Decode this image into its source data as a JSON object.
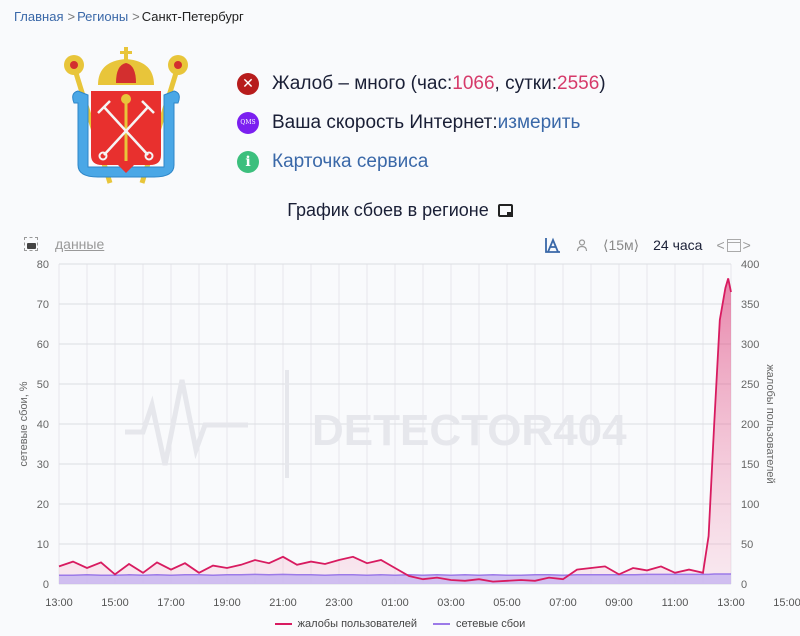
{
  "breadcrumb": {
    "items": [
      "Главная",
      "Регионы"
    ],
    "current": "Санкт-Петербург",
    "separator": ">"
  },
  "emblem": {
    "alt": "Герб Санкт-Петербурга"
  },
  "info": {
    "complaints": {
      "icon": "error-x-icon",
      "prefix": "Жалоб – много (час: ",
      "hour_value": "1066",
      "mid": ", сутки: ",
      "day_value": "2556",
      "suffix": ")"
    },
    "speed": {
      "icon": "qms-icon",
      "icon_text": "QMS",
      "label": "Ваша скорость Интернет: ",
      "link": "измерить"
    },
    "service": {
      "icon": "info-icon",
      "icon_text": "i",
      "link": "Карточка сервиса"
    }
  },
  "chart_header": {
    "title": "График сбоев в регионе",
    "title_icon": "monitor-icon"
  },
  "toolbar": {
    "camera_icon": "camera-icon",
    "data_link": "данные",
    "chart_mode_icon": "chart-mode-icon",
    "user_icon": "user-icon",
    "interval": "⟨15м⟩",
    "period": "24 часа",
    "prev": "<",
    "next": ">",
    "calendar_icon": "calendar-icon"
  },
  "colors": {
    "complaints": "#d81b60",
    "complaints_fill": "#f8bbd0",
    "outages": "#9c7ae8",
    "outages_fill": "#c9b6f0",
    "link": "#3a68a8",
    "number": "#d63a6a"
  },
  "chart_data": {
    "type": "line",
    "title": "График сбоев в регионе",
    "xlabel": "",
    "ylabel": "сетевые сбои, %",
    "y2label": "жалобы пользователей",
    "ylim": [
      0,
      80
    ],
    "y2lim": [
      0,
      400
    ],
    "yticks": [
      0,
      10,
      20,
      30,
      40,
      50,
      60,
      70,
      80
    ],
    "y2ticks": [
      0,
      50,
      100,
      150,
      200,
      250,
      300,
      350,
      400
    ],
    "xticks": [
      "13:00",
      "15:00",
      "17:00",
      "19:00",
      "21:00",
      "23:00",
      "01:00",
      "03:00",
      "05:00",
      "07:00",
      "09:00",
      "11:00",
      "13:00",
      "15:00"
    ],
    "grid": true,
    "legend_position": "bottom",
    "watermark": "DETECTOR404",
    "x_hours_from_start": [
      0,
      0.5,
      1,
      1.5,
      2,
      2.5,
      3,
      3.5,
      4,
      4.5,
      5,
      5.5,
      6,
      6.5,
      7,
      7.5,
      8,
      8.5,
      9,
      9.5,
      10,
      10.5,
      11,
      11.5,
      12,
      12.5,
      13,
      13.5,
      14,
      14.5,
      15,
      15.5,
      16,
      16.5,
      17,
      17.5,
      18,
      18.5,
      19,
      19.5,
      20,
      20.5,
      21,
      21.5,
      22,
      22.5,
      23,
      23.2,
      23.4,
      23.6,
      23.8,
      23.9,
      24
    ],
    "series": [
      {
        "name": "жалобы пользователей",
        "axis": "right",
        "values": [
          22,
          28,
          20,
          27,
          12,
          25,
          14,
          27,
          18,
          26,
          14,
          23,
          20,
          24,
          30,
          26,
          34,
          24,
          28,
          25,
          30,
          34,
          26,
          30,
          20,
          10,
          6,
          8,
          5,
          4,
          6,
          3,
          4,
          5,
          4,
          8,
          6,
          18,
          20,
          22,
          12,
          20,
          17,
          22,
          14,
          18,
          14,
          60,
          200,
          330,
          370,
          382,
          365
        ]
      },
      {
        "name": "сетевые сбои",
        "axis": "left",
        "values": [
          2.2,
          2.2,
          2.3,
          2.2,
          2.2,
          2.3,
          2.2,
          2.3,
          2.2,
          2.3,
          2.3,
          2.2,
          2.3,
          2.3,
          2.4,
          2.3,
          2.4,
          2.3,
          2.3,
          2.2,
          2.3,
          2.3,
          2.2,
          2.3,
          2.2,
          2.3,
          2.2,
          2.3,
          2.2,
          2.3,
          2.2,
          2.3,
          2.2,
          2.2,
          2.3,
          2.3,
          2.2,
          2.3,
          2.3,
          2.3,
          2.3,
          2.3,
          2.4,
          2.4,
          2.4,
          2.4,
          2.4,
          2.4,
          2.5,
          2.5,
          2.5,
          2.5,
          2.5
        ]
      }
    ]
  },
  "legend": [
    {
      "label": "жалобы пользователей",
      "color": "#d81b60"
    },
    {
      "label": "сетевые сбои",
      "color": "#9c7ae8"
    }
  ]
}
